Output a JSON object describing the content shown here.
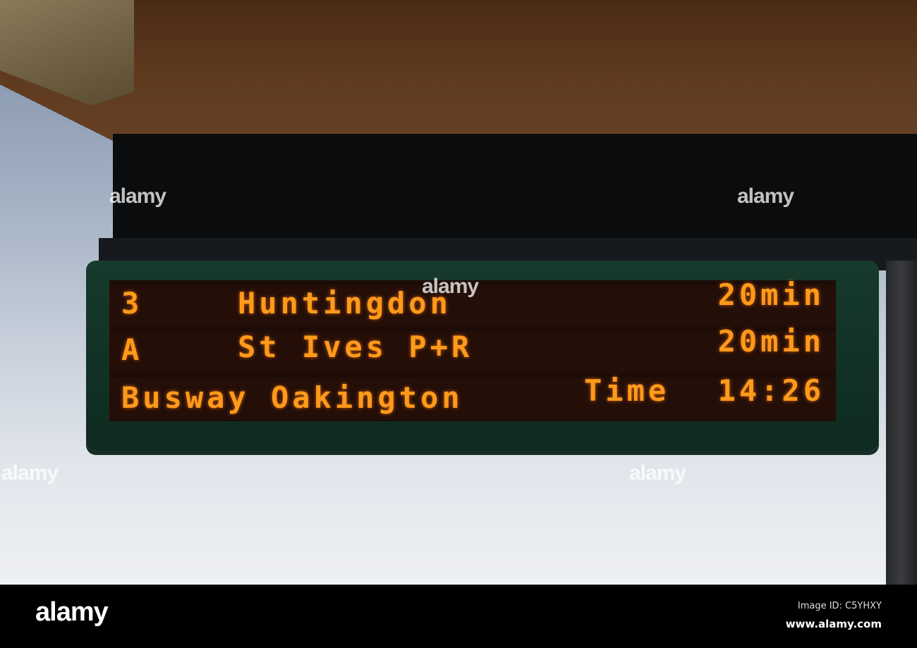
{
  "display": {
    "rows": [
      {
        "route": "3",
        "destination": "Huntingdon",
        "time": "20min"
      },
      {
        "route": "A",
        "destination": "St Ives P+R",
        "time": "20min"
      },
      {
        "stop": "Busway Oakington",
        "clock_label": "Time",
        "clock": "14:26"
      }
    ],
    "led_color": "#ff9a1a",
    "frame_color": "#163a2c"
  },
  "watermark": "alamy",
  "footer": {
    "logo": "alamy",
    "image_id": "Image ID: C5YHXY",
    "site": "www.alamy.com"
  }
}
